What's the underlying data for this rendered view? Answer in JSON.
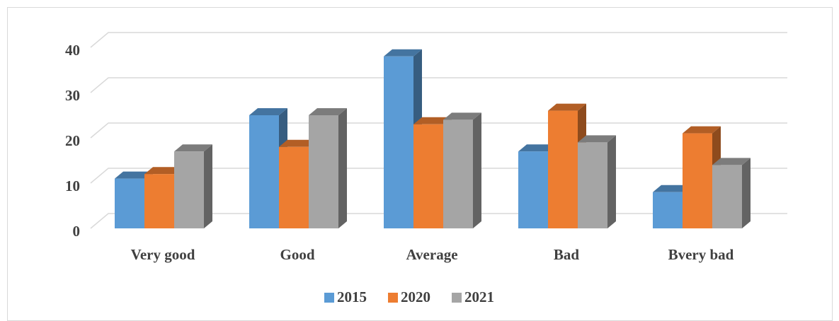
{
  "chart_data": {
    "type": "bar3d",
    "categories": [
      "Very good",
      "Good",
      "Average",
      "Bad",
      "Bvery bad"
    ],
    "series": [
      {
        "name": "2015",
        "color": "#5b9bd5",
        "values": [
          11,
          25,
          38,
          17,
          8
        ]
      },
      {
        "name": "2020",
        "color": "#ed7d31",
        "values": [
          12,
          18,
          23,
          26,
          21
        ]
      },
      {
        "name": "2021",
        "color": "#a5a5a5",
        "values": [
          17,
          25,
          24,
          19,
          14
        ]
      }
    ],
    "ylim": [
      0,
      40
    ],
    "yticks": [
      0,
      10,
      20,
      30,
      40
    ],
    "grid": true,
    "legend": "bottom"
  }
}
